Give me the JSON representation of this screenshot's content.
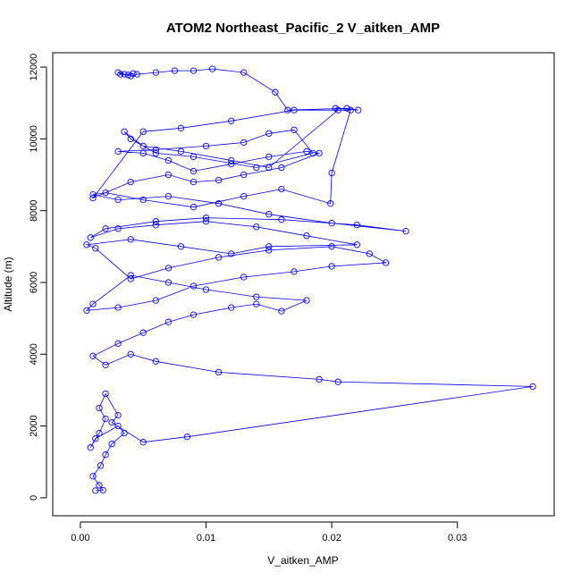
{
  "chart_data": {
    "type": "line",
    "title": "ATOM2 Northeast_Pacific_2 V_aitken_AMP",
    "xlabel": "V_aitken_AMP",
    "ylabel": "Altitude (m)",
    "xlim": [
      -0.0022,
      0.0377
    ],
    "ylim": [
      -500,
      12400
    ],
    "x_ticks": [
      0.0,
      0.01,
      0.02,
      0.03
    ],
    "x_tick_labels": [
      "0.00",
      "0.01",
      "0.02",
      "0.03"
    ],
    "y_ticks": [
      0,
      2000,
      4000,
      6000,
      8000,
      10000,
      12000
    ],
    "y_tick_labels": [
      "0",
      "2000",
      "4000",
      "6000",
      "8000",
      "10000",
      "12000"
    ],
    "grid": false,
    "legend": "none",
    "series_color": "#0000ff",
    "marker": "open-circle",
    "series": [
      {
        "x": [
          0.0012,
          0.0018,
          0.0015,
          0.001,
          0.0016,
          0.002,
          0.0025,
          0.0035,
          0.003,
          0.0012,
          0.0008,
          0.0015,
          0.002,
          0.0015,
          0.002,
          0.003,
          0.0025,
          0.005,
          0.0085,
          0.036,
          0.0205,
          0.019,
          0.011,
          0.006,
          0.004,
          0.002,
          0.001,
          0.003,
          0.005,
          0.007,
          0.009,
          0.012,
          0.014,
          0.016,
          0.018,
          0.014,
          0.01,
          0.007,
          0.004,
          0.001,
          0.0005,
          0.003,
          0.006,
          0.009,
          0.013,
          0.017,
          0.02,
          0.0243,
          0.023,
          0.02,
          0.015,
          0.011,
          0.007,
          0.004,
          0.0012,
          0.0005,
          0.004,
          0.008,
          0.012,
          0.015,
          0.022,
          0.018,
          0.014,
          0.01,
          0.006,
          0.003,
          0.0008,
          0.002,
          0.006,
          0.01,
          0.016,
          0.022,
          0.0259,
          0.02,
          0.015,
          0.011,
          0.007,
          0.003,
          0.001,
          0.002,
          0.005,
          0.009,
          0.013,
          0.016,
          0.0199,
          0.02,
          0.0215,
          0.017,
          0.012,
          0.008,
          0.005,
          0.001,
          0.004,
          0.007,
          0.009,
          0.011,
          0.013,
          0.016,
          0.019,
          0.018,
          0.015,
          0.012,
          0.009,
          0.007,
          0.005,
          0.003,
          0.006,
          0.01,
          0.013,
          0.015,
          0.017,
          0.0185,
          0.014,
          0.009,
          0.006,
          0.004,
          0.0035,
          0.005,
          0.008,
          0.012,
          0.015,
          0.0205,
          0.0203,
          0.0221,
          0.0212,
          0.0165,
          0.0155,
          0.013,
          0.0105,
          0.009,
          0.0075,
          0.006,
          0.0045,
          0.004,
          0.0035,
          0.003,
          0.0032,
          0.0038,
          0.0042
        ],
        "y": [
          200,
          210,
          350,
          600,
          900,
          1200,
          1500,
          1800,
          2000,
          1650,
          1400,
          1800,
          2200,
          2500,
          2900,
          2300,
          2100,
          1550,
          1700,
          3100,
          3230,
          3300,
          3500,
          3800,
          4000,
          3700,
          3950,
          4300,
          4600,
          4900,
          5100,
          5300,
          5400,
          5200,
          5500,
          5600,
          5800,
          6000,
          6200,
          5400,
          5220,
          5300,
          5500,
          5900,
          6150,
          6300,
          6450,
          6550,
          6800,
          7000,
          6900,
          6700,
          6400,
          6100,
          6950,
          7050,
          7200,
          7000,
          6800,
          7000,
          7050,
          7300,
          7550,
          7700,
          7600,
          7500,
          7250,
          7500,
          7700,
          7800,
          7750,
          7600,
          7430,
          7650,
          7900,
          8200,
          8400,
          8300,
          8450,
          8500,
          8300,
          8100,
          8400,
          8600,
          8200,
          9050,
          10800,
          10800,
          10500,
          10300,
          10200,
          8350,
          8800,
          9000,
          8800,
          8850,
          9000,
          9200,
          9600,
          9650,
          9500,
          9300,
          9100,
          9400,
          9600,
          9650,
          9700,
          9800,
          9900,
          10150,
          10250,
          9600,
          9200,
          9500,
          9600,
          10000,
          10200,
          9800,
          9650,
          9400,
          9200,
          10800,
          10850,
          10800,
          10850,
          10800,
          11300,
          11850,
          11950,
          11900,
          11900,
          11850,
          11800,
          11750,
          11800,
          11850,
          11800,
          11780,
          11820
        ]
      }
    ]
  }
}
